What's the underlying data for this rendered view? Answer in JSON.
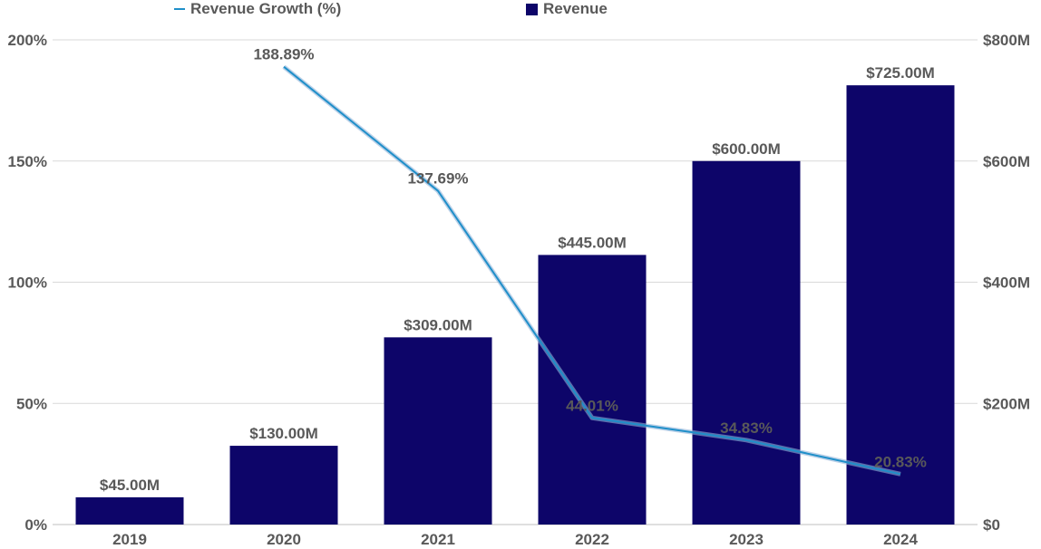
{
  "chart_data": {
    "type": "bar",
    "categories": [
      "2019",
      "2020",
      "2021",
      "2022",
      "2023",
      "2024"
    ],
    "series": [
      {
        "name": "Revenue",
        "type": "bar",
        "axis": "right",
        "values": [
          45,
          130,
          309,
          445,
          600,
          725
        ],
        "labels": [
          "$45.00M",
          "$130.00M",
          "$309.00M",
          "$445.00M",
          "$600.00M",
          "$725.00M"
        ],
        "color": "#0d0569"
      },
      {
        "name": "Revenue Growth (%)",
        "type": "line",
        "axis": "left",
        "x": [
          "2020",
          "2021",
          "2022",
          "2023",
          "2024"
        ],
        "values": [
          188.89,
          137.69,
          44.01,
          34.83,
          20.83
        ],
        "labels": [
          "188.89%",
          "137.69%",
          "44.01%",
          "34.83%",
          "20.83%"
        ],
        "color": "#1f8fc9"
      }
    ],
    "y_left": {
      "range": [
        0,
        200
      ],
      "ticks": [
        0,
        50,
        100,
        150,
        200
      ],
      "tick_labels": [
        "0%",
        "50%",
        "100%",
        "150%",
        "200%"
      ]
    },
    "y_right": {
      "range": [
        0,
        800
      ],
      "ticks": [
        0,
        200,
        400,
        600,
        800
      ],
      "tick_labels": [
        "$0",
        "$200M",
        "$400M",
        "$600M",
        "$800M"
      ]
    },
    "legend": {
      "placement": "top",
      "items": [
        "Revenue Growth (%)",
        "Revenue"
      ]
    },
    "grid": true,
    "title": "",
    "xlabel": "",
    "ylabel": ""
  }
}
